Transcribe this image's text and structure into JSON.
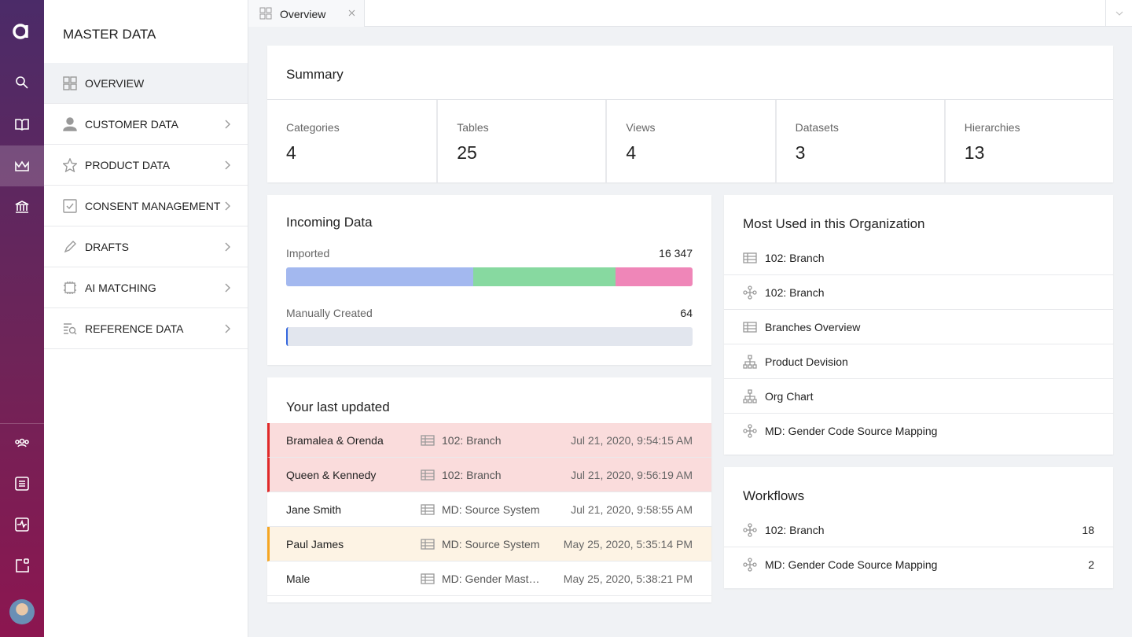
{
  "sidebar": {
    "title": "MASTER DATA",
    "items": [
      "OVERVIEW",
      "CUSTOMER DATA",
      "PRODUCT DATA",
      "CONSENT MANAGEMENT",
      "DRAFTS",
      "AI MATCHING",
      "REFERENCE DATA"
    ]
  },
  "tabs": [
    "Overview"
  ],
  "summary": {
    "title": "Summary",
    "stats": [
      {
        "label": "Categories",
        "value": 4
      },
      {
        "label": "Tables",
        "value": 25
      },
      {
        "label": "Views",
        "value": 4
      },
      {
        "label": "Datasets",
        "value": 3
      },
      {
        "label": "Hierarchies",
        "value": 13
      }
    ]
  },
  "incoming": {
    "title": "Incoming Data",
    "rows": [
      {
        "label": "Imported",
        "value": "16 347"
      },
      {
        "label": "Manually Created",
        "value": 64
      }
    ]
  },
  "last_updated": {
    "title": "Your last updated",
    "rows": [
      {
        "name": "Bramalea & Orenda",
        "dataset": "102: Branch",
        "time": "Jul 21, 2020, 9:54:15 AM"
      },
      {
        "name": "Queen & Kennedy",
        "dataset": "102: Branch",
        "time": "Jul 21, 2020, 9:56:19 AM"
      },
      {
        "name": "Jane Smith",
        "dataset": "MD: Source System",
        "time": "Jul 21, 2020, 9:58:55 AM"
      },
      {
        "name": "Paul James",
        "dataset": "MD: Source System",
        "time": "May 25, 2020, 5:35:14 PM"
      },
      {
        "name": "Male",
        "dataset": "MD: Gender Mast…",
        "time": "May 25, 2020, 5:38:21 PM"
      }
    ]
  },
  "most_used": {
    "title": "Most Used in this Organization",
    "items": [
      "102: Branch",
      "102: Branch",
      "Branches Overview",
      "Product Devision",
      "Org Chart",
      "MD: Gender Code Source Mapping"
    ]
  },
  "workflows": {
    "title": "Workflows",
    "items": [
      {
        "name": "102: Branch",
        "count": 18
      },
      {
        "name": "MD: Gender Code Source Mapping",
        "count": 2
      }
    ]
  }
}
